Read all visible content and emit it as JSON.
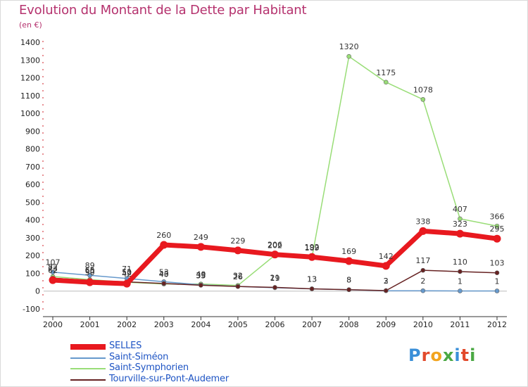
{
  "header": {
    "title": "Evolution du Montant de la Dette par Habitant",
    "subtitle": "(en €)"
  },
  "logo": {
    "text": "Proxiti",
    "colors": [
      "#3a8fd8",
      "#e24a2c",
      "#f2a41f",
      "#4aa843",
      "#3a8fd8",
      "#e24a2c",
      "#4aa843"
    ]
  },
  "chart_data": {
    "type": "line",
    "x": [
      "2000",
      "2001",
      "2002",
      "2003",
      "2004",
      "2005",
      "2006",
      "2007",
      "2008",
      "2009",
      "2010",
      "2011",
      "2012"
    ],
    "ylim": [
      -100,
      1400
    ],
    "yticks": [
      -100,
      0,
      100,
      200,
      300,
      400,
      500,
      600,
      700,
      800,
      900,
      1000,
      1100,
      1200,
      1300,
      1400
    ],
    "grid": false,
    "legend_position": "bottom-left",
    "series": [
      {
        "name": "SELLES",
        "color": "#e8191f",
        "width": 7,
        "values": [
          62,
          50,
          42,
          260,
          249,
          229,
          206,
          192,
          169,
          142,
          338,
          323,
          295
        ]
      },
      {
        "name": "Saint-Siméon",
        "color": "#6699cc",
        "width": 1.5,
        "values": [
          107,
          89,
          71,
          53,
          35,
          26,
          19,
          13,
          8,
          2,
          2,
          1,
          1
        ]
      },
      {
        "name": "Saint-Symphorien",
        "color": "#99dd77",
        "width": 1.5,
        "values": [
          82,
          65,
          50,
          40,
          40,
          32,
          202,
          189,
          1320,
          1175,
          1078,
          407,
          366
        ]
      },
      {
        "name": "Tourville-sur-Pont-Audemer",
        "color": "#662222",
        "width": 1.5,
        "values": [
          73,
          60,
          52,
          43,
          33,
          26,
          21,
          13,
          8,
          3,
          117,
          110,
          103
        ]
      }
    ]
  }
}
